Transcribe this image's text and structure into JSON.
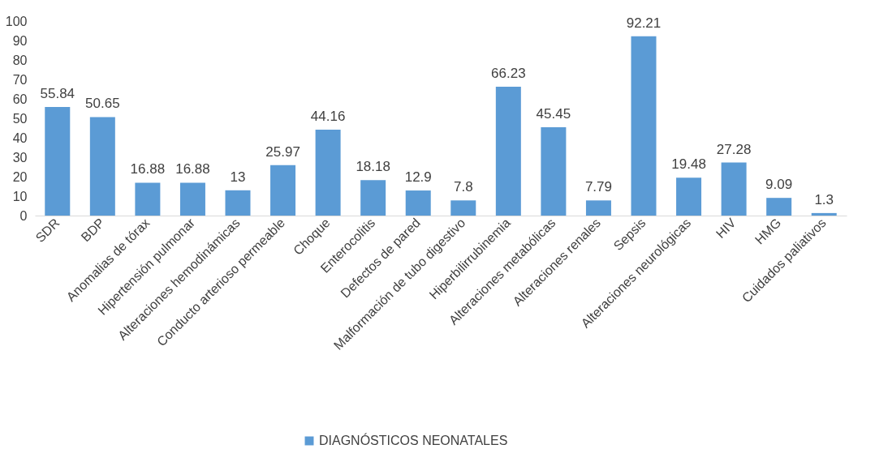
{
  "chart_data": {
    "type": "bar",
    "categories": [
      "SDR",
      "BDP",
      "Anomalias de tórax",
      "Hipertensión pulmonar",
      "Alteraciones hemodinámicas",
      "Conducto arterioso permeable",
      "Choque",
      "Enterocolitis",
      "Defectos de pared",
      "Malformación de tubo digestivo",
      "Hiperbilirrubinemia",
      "Alteraciones metabólicas",
      "Alteraciones renales",
      "Sepsis",
      "Alteraciones neurológicas",
      "HIV",
      "HMG",
      "Cuidados paliativos"
    ],
    "series": [
      {
        "name": "DIAGNÓSTICOS NEONATALES",
        "color": "#5b9bd5",
        "values": [
          55.84,
          50.65,
          16.88,
          16.88,
          13,
          25.97,
          44.16,
          18.18,
          12.9,
          7.8,
          66.23,
          45.45,
          7.79,
          92.21,
          19.48,
          27.28,
          9.09,
          1.3
        ]
      }
    ],
    "ylim": [
      0,
      100
    ],
    "yticks": [
      0,
      10,
      20,
      30,
      40,
      50,
      60,
      70,
      80,
      90,
      100
    ],
    "grid": false,
    "legend": "bottom",
    "data_labels": true
  }
}
